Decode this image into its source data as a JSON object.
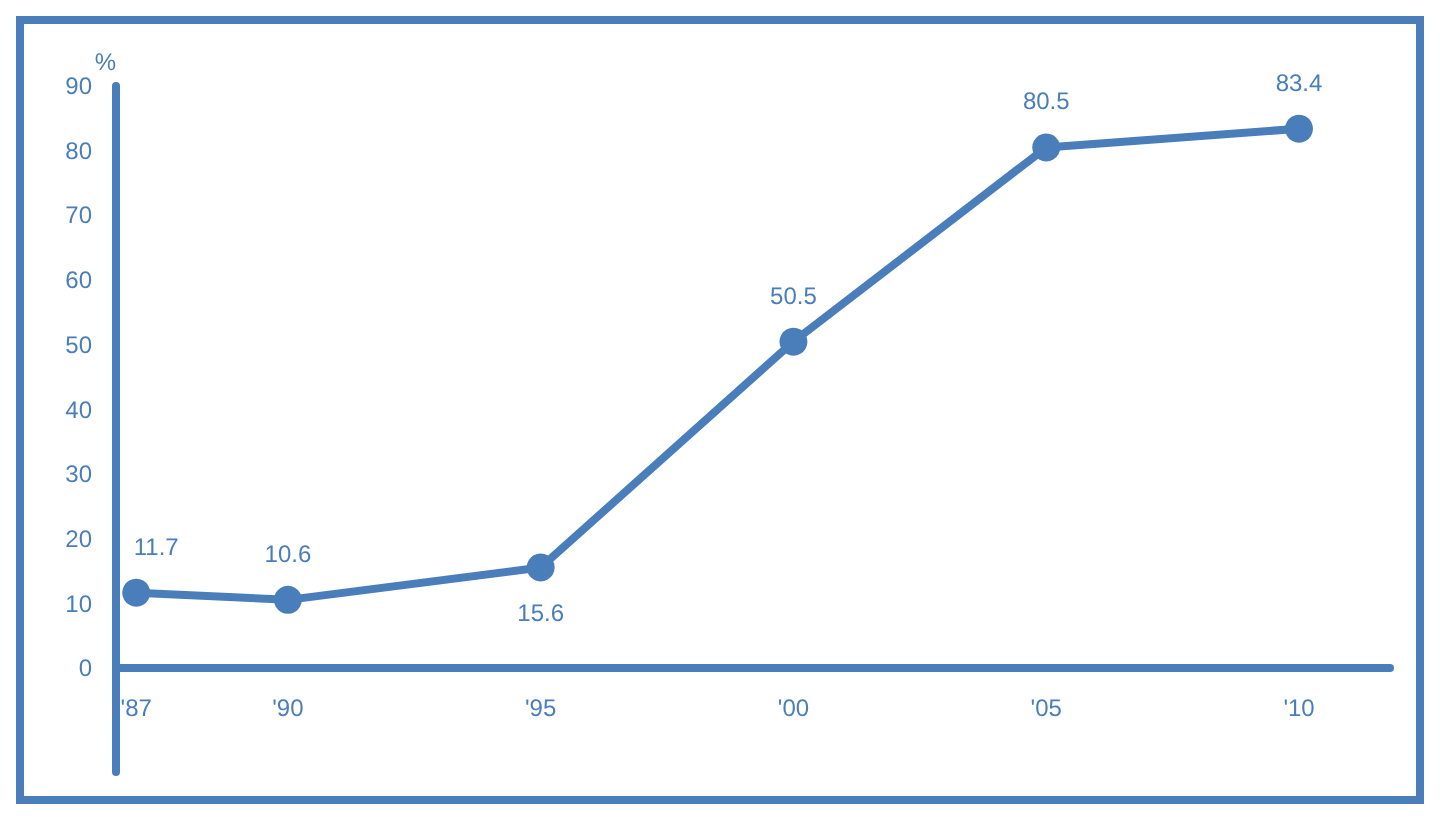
{
  "chart_data": {
    "type": "line",
    "ylabel": "%",
    "x": [
      1987,
      1990,
      1995,
      2000,
      2005,
      2010
    ],
    "series": [
      {
        "color": "#4a7ebb",
        "values": [
          11.7,
          10.6,
          15.6,
          50.5,
          80.5,
          83.4
        ]
      }
    ],
    "xlim": [
      1986.6,
      2011.8
    ],
    "xticks": [
      {
        "value": 1987,
        "label": "'87"
      },
      {
        "value": 1990,
        "label": "'90"
      },
      {
        "value": 1995,
        "label": "'95"
      },
      {
        "value": 2000,
        "label": "'00"
      },
      {
        "value": 2005,
        "label": "'05"
      },
      {
        "value": 2010,
        "label": "'10"
      }
    ],
    "ylim": [
      -16,
      90
    ],
    "yticks": [
      0,
      10,
      20,
      30,
      40,
      50,
      60,
      70,
      80,
      90
    ],
    "data_labels": true,
    "marker": "circle",
    "line_style": "solid",
    "grid": false
  }
}
